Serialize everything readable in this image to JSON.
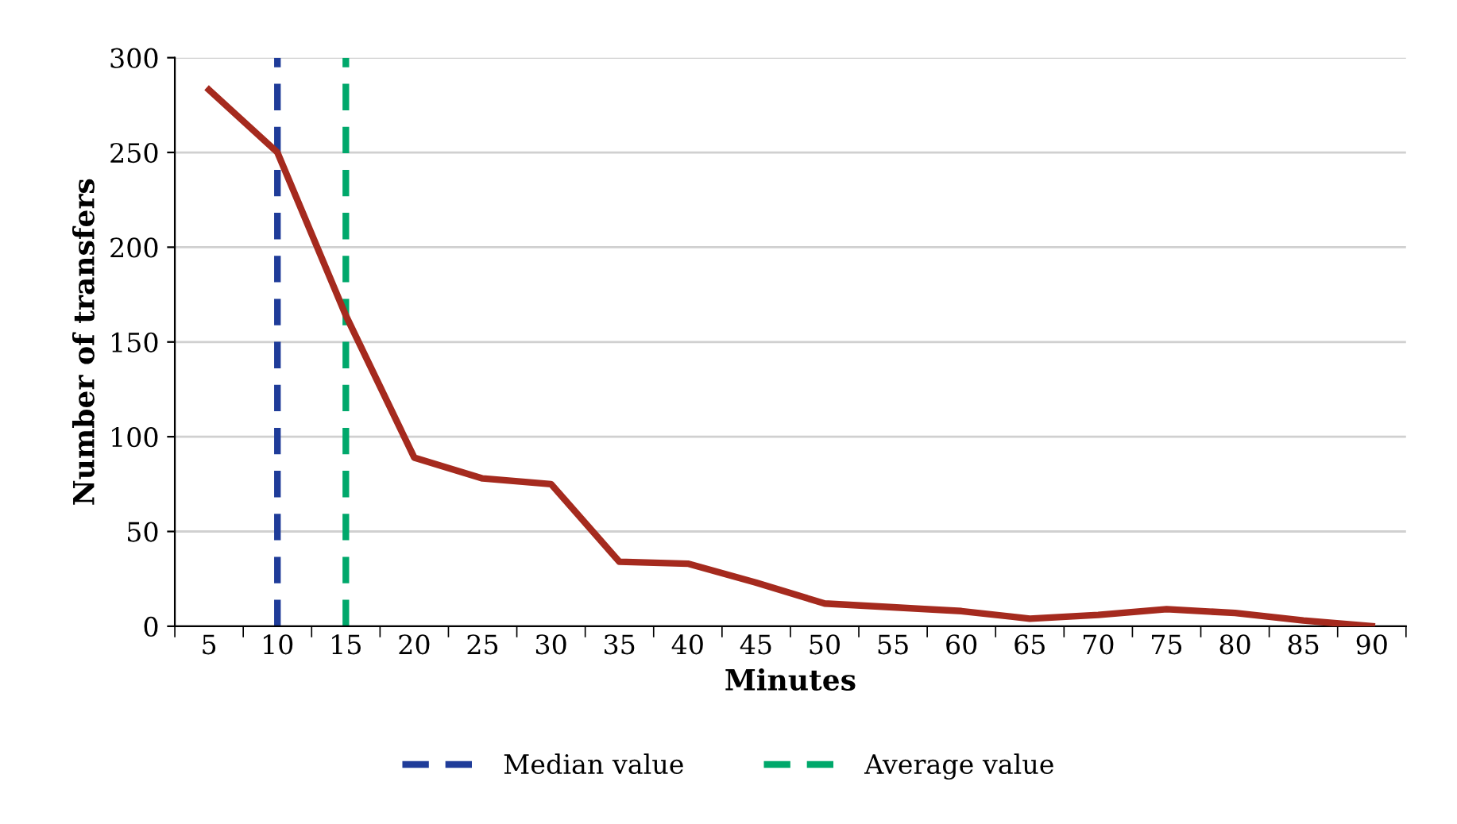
{
  "chart_data": {
    "type": "line",
    "xlabel": "Minutes",
    "ylabel": "Number of transfers",
    "categories": [
      "5",
      "10",
      "15",
      "20",
      "25",
      "30",
      "35",
      "40",
      "45",
      "50",
      "55",
      "60",
      "65",
      "70",
      "75",
      "80",
      "85",
      "90"
    ],
    "series": [
      {
        "color": "#a52a1e",
        "values": [
          283,
          250,
          164,
          89,
          78,
          75,
          34,
          33,
          23,
          12,
          10,
          8,
          4,
          6,
          9,
          7,
          3,
          0
        ]
      }
    ],
    "ylim": [
      0,
      300
    ],
    "yticks": [
      0,
      50,
      100,
      150,
      200,
      250,
      300
    ],
    "grid": "y",
    "legend": "bottom",
    "marker": "none",
    "line_style": "solid",
    "ref_lines": [
      {
        "axis": "x",
        "value": "10",
        "label": "Median value",
        "color": "#1f3c99",
        "line_style": "dashed"
      },
      {
        "axis": "x",
        "value": "15",
        "label": "Average value",
        "color": "#00a86b",
        "line_style": "dashed"
      }
    ]
  }
}
